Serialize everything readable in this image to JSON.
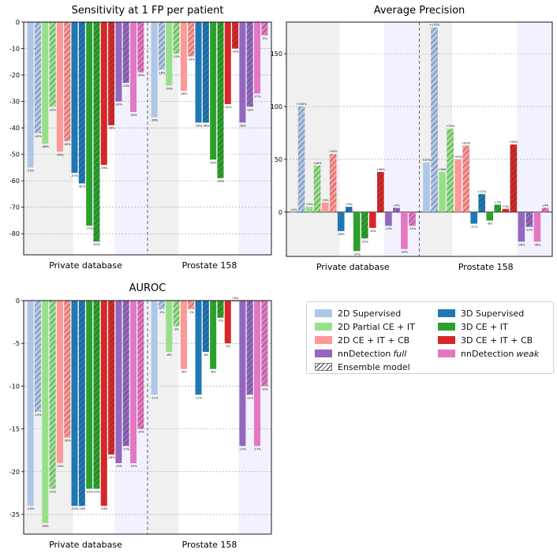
{
  "legend": {
    "items": [
      {
        "label": "2D Supervised",
        "color": "#aec7e8",
        "hatch": false
      },
      {
        "label": "2D Partial CE + IT",
        "color": "#98df8a",
        "hatch": false
      },
      {
        "label": "2D CE + IT + CB",
        "color": "#ff9896",
        "hatch": false
      },
      {
        "label": "nnDetection",
        "label_italic": "full",
        "color": "#9467bd",
        "hatch": false
      },
      {
        "label": "Ensemble model",
        "color": "#ffffff",
        "hatch": true
      },
      {
        "label": "3D Supervised",
        "color": "#1f77b4",
        "hatch": false
      },
      {
        "label": "3D CE + IT",
        "color": "#2ca02c",
        "hatch": false
      },
      {
        "label": "3D CE + IT + CB",
        "color": "#d62728",
        "hatch": false
      },
      {
        "label": "nnDetection",
        "label_italic": "weak",
        "color": "#e377c2",
        "hatch": false
      }
    ]
  },
  "chart_data": [
    {
      "type": "bar",
      "title": "Sensitivity at 1 FP per patient",
      "categories": [
        "Private database",
        "Prostate 158"
      ],
      "ylim": [
        -88,
        0
      ],
      "yticks": [
        0,
        -10,
        -20,
        -30,
        -40,
        -50,
        -60,
        -70,
        -80
      ],
      "series": [
        {
          "name": "2D Supervised",
          "color": "#aec7e8",
          "values": [
            -55,
            -36
          ],
          "labels": [
            "-55%",
            "-36%"
          ]
        },
        {
          "name": "2D Supervised (Ensemble)",
          "color": "#aec7e8",
          "hatch": true,
          "values": [
            -42,
            -18
          ],
          "labels": [
            "-42%",
            "-18%"
          ]
        },
        {
          "name": "2D Partial CE + IT",
          "color": "#98df8a",
          "values": [
            -46,
            -24
          ],
          "labels": [
            "-46%",
            "-24%"
          ]
        },
        {
          "name": "2D Partial CE + IT (Ensemble)",
          "color": "#98df8a",
          "hatch": true,
          "values": [
            -32,
            -12
          ],
          "labels": [
            "-32%",
            "-12%"
          ]
        },
        {
          "name": "2D CE + IT + CB",
          "color": "#ff9896",
          "values": [
            -49,
            -26
          ],
          "labels": [
            "-49%",
            "-26%"
          ]
        },
        {
          "name": "2D CE + IT + CB (Ensemble)",
          "color": "#ff9896",
          "hatch": true,
          "values": [
            -45,
            -13
          ],
          "labels": [
            "-45%",
            "-13%"
          ]
        },
        {
          "name": "3D Supervised",
          "color": "#1f77b4",
          "values": [
            -57,
            -38
          ],
          "labels": [
            "-57%",
            "-38%"
          ]
        },
        {
          "name": "3D Supervised (Ensemble)",
          "color": "#1f77b4",
          "hatch": true,
          "values": [
            -61,
            -38
          ],
          "labels": [
            "-61%",
            "-38%"
          ]
        },
        {
          "name": "3D CE + IT",
          "color": "#2ca02c",
          "values": [
            -77,
            -52
          ],
          "labels": [
            "-77%",
            "-52%"
          ]
        },
        {
          "name": "3D CE + IT (Ensemble)",
          "color": "#2ca02c",
          "hatch": true,
          "values": [
            -83,
            -59
          ],
          "labels": [
            "-83%",
            "-59%"
          ]
        },
        {
          "name": "3D CE + IT + CB",
          "color": "#d62728",
          "values": [
            -54,
            -31
          ],
          "labels": [
            "-54%",
            "-31%"
          ]
        },
        {
          "name": "3D CE + IT + CB (Ensemble)",
          "color": "#d62728",
          "hatch": true,
          "values": [
            -39,
            -10
          ],
          "labels": [
            "-39%",
            "-10%"
          ]
        },
        {
          "name": "nnDetection full",
          "color": "#9467bd",
          "values": [
            -30,
            -38
          ],
          "labels": [
            "-30%",
            "-38%"
          ]
        },
        {
          "name": "nnDetection full (Ensemble)",
          "color": "#9467bd",
          "hatch": true,
          "values": [
            -23,
            -32
          ],
          "labels": [
            "-23%",
            "-32%"
          ]
        },
        {
          "name": "nnDetection weak",
          "color": "#e377c2",
          "values": [
            -34,
            -27
          ],
          "labels": [
            "-34%",
            "-27%"
          ]
        },
        {
          "name": "nnDetection weak (Ensemble)",
          "color": "#e377c2",
          "hatch": true,
          "values": [
            -19,
            -5
          ],
          "labels": [
            "-19%",
            "-5%"
          ]
        }
      ]
    },
    {
      "type": "bar",
      "title": "Average Precision",
      "categories": [
        "Private database",
        "Prostate 158"
      ],
      "ylim": [
        -42,
        180
      ],
      "yticks": [
        150,
        100,
        50,
        0
      ],
      "series": [
        {
          "name": "2D Supervised",
          "color": "#aec7e8",
          "values": [
            0,
            47
          ],
          "labels": [
            "+0%",
            "+47%"
          ]
        },
        {
          "name": "2D Supervised (Ensemble)",
          "color": "#aec7e8",
          "hatch": true,
          "values": [
            100,
            175
          ],
          "labels": [
            "+100%",
            "+175%"
          ]
        },
        {
          "name": "2D Partial CE + IT",
          "color": "#98df8a",
          "values": [
            5,
            38
          ],
          "labels": [
            "+5%",
            "+38%"
          ]
        },
        {
          "name": "2D Partial CE + IT (Ensemble)",
          "color": "#98df8a",
          "hatch": true,
          "values": [
            44,
            79
          ],
          "labels": [
            "+44%",
            "+79%"
          ]
        },
        {
          "name": "2D CE + IT + CB",
          "color": "#ff9896",
          "values": [
            9,
            50
          ],
          "labels": [
            "+9%",
            "+50%"
          ]
        },
        {
          "name": "2D CE + IT + CB (Ensemble)",
          "color": "#ff9896",
          "hatch": true,
          "values": [
            55,
            63
          ],
          "labels": [
            "+55%",
            "+63%"
          ]
        },
        {
          "name": "3D Supervised",
          "color": "#1f77b4",
          "values": [
            -18,
            -11
          ],
          "labels": [
            "-18%",
            "-11%"
          ]
        },
        {
          "name": "3D Supervised (Ensemble)",
          "color": "#1f77b4",
          "hatch": true,
          "values": [
            5,
            17
          ],
          "labels": [
            "+5%",
            "+17%"
          ]
        },
        {
          "name": "3D CE + IT",
          "color": "#2ca02c",
          "values": [
            -37,
            -8
          ],
          "labels": [
            "-37%",
            "-8%"
          ]
        },
        {
          "name": "3D CE + IT (Ensemble)",
          "color": "#2ca02c",
          "hatch": true,
          "values": [
            -25,
            7
          ],
          "labels": [
            "-25%",
            "+7%"
          ]
        },
        {
          "name": "3D CE + IT + CB",
          "color": "#d62728",
          "values": [
            -15,
            3
          ],
          "labels": [
            "-15%",
            "+3%"
          ]
        },
        {
          "name": "3D CE + IT + CB (Ensemble)",
          "color": "#d62728",
          "hatch": true,
          "values": [
            38,
            64
          ],
          "labels": [
            "+38%",
            "+64%"
          ]
        },
        {
          "name": "nnDetection full",
          "color": "#9467bd",
          "values": [
            -13,
            -28
          ],
          "labels": [
            "-13%",
            "-28%"
          ]
        },
        {
          "name": "nnDetection full (Ensemble)",
          "color": "#9467bd",
          "hatch": true,
          "values": [
            4,
            -14
          ],
          "labels": [
            "+4%",
            "-14%"
          ]
        },
        {
          "name": "nnDetection weak",
          "color": "#e377c2",
          "values": [
            -35,
            -28
          ],
          "labels": [
            "-35%",
            "-28%"
          ]
        },
        {
          "name": "nnDetection weak (Ensemble)",
          "color": "#e377c2",
          "hatch": true,
          "values": [
            -13,
            4
          ],
          "labels": [
            "-13%",
            "+4%"
          ]
        }
      ]
    },
    {
      "type": "bar",
      "title": "AUROC",
      "categories": [
        "Private database",
        "Prostate 158"
      ],
      "ylim": [
        -27.3,
        0
      ],
      "yticks": [
        0,
        -5,
        -10,
        -15,
        -20,
        -25
      ],
      "series": [
        {
          "name": "2D Supervised",
          "color": "#aec7e8",
          "values": [
            -24,
            -11
          ],
          "labels": [
            "-24%",
            "-11%"
          ]
        },
        {
          "name": "2D Supervised (Ensemble)",
          "color": "#aec7e8",
          "hatch": true,
          "values": [
            -13,
            -1
          ],
          "labels": [
            "-13%",
            "-1%"
          ]
        },
        {
          "name": "2D Partial CE + IT",
          "color": "#98df8a",
          "values": [
            -26,
            -6
          ],
          "labels": [
            "-26%",
            "-6%"
          ]
        },
        {
          "name": "2D Partial CE + IT (Ensemble)",
          "color": "#98df8a",
          "hatch": true,
          "values": [
            -22,
            -3
          ],
          "labels": [
            "-22%",
            "-3%"
          ]
        },
        {
          "name": "2D CE + IT + CB",
          "color": "#ff9896",
          "values": [
            -19,
            -8
          ],
          "labels": [
            "-19%",
            "-8%"
          ]
        },
        {
          "name": "2D CE + IT + CB (Ensemble)",
          "color": "#ff9896",
          "hatch": true,
          "values": [
            -16,
            -1
          ],
          "labels": [
            "-16%",
            "-1%"
          ]
        },
        {
          "name": "3D Supervised",
          "color": "#1f77b4",
          "values": [
            -24,
            -11
          ],
          "labels": [
            "-24%",
            "-11%"
          ]
        },
        {
          "name": "3D Supervised (Ensemble)",
          "color": "#1f77b4",
          "hatch": true,
          "values": [
            -24,
            -6
          ],
          "labels": [
            "-24%",
            "-6%"
          ]
        },
        {
          "name": "3D CE + IT",
          "color": "#2ca02c",
          "values": [
            -22,
            -8
          ],
          "labels": [
            "-22%",
            "-8%"
          ]
        },
        {
          "name": "3D CE + IT (Ensemble)",
          "color": "#2ca02c",
          "hatch": true,
          "values": [
            -22,
            -2
          ],
          "labels": [
            "-22%",
            "-2%"
          ]
        },
        {
          "name": "3D CE + IT + CB",
          "color": "#d62728",
          "values": [
            -24,
            -5
          ],
          "labels": [
            "-24%",
            "-5%"
          ]
        },
        {
          "name": "3D CE + IT + CB (Ensemble)",
          "color": "#d62728",
          "hatch": true,
          "values": [
            -18,
            0
          ],
          "labels": [
            "-18%",
            "+0%"
          ]
        },
        {
          "name": "nnDetection full",
          "color": "#9467bd",
          "values": [
            -19,
            -17
          ],
          "labels": [
            "-19%",
            "-17%"
          ]
        },
        {
          "name": "nnDetection full (Ensemble)",
          "color": "#9467bd",
          "hatch": true,
          "values": [
            -17,
            -11
          ],
          "labels": [
            "-17%",
            "-11%"
          ]
        },
        {
          "name": "nnDetection weak",
          "color": "#e377c2",
          "values": [
            -19,
            -17
          ],
          "labels": [
            "-19%",
            "-17%"
          ]
        },
        {
          "name": "nnDetection weak (Ensemble)",
          "color": "#e377c2",
          "hatch": true,
          "values": [
            -15,
            -10
          ],
          "labels": [
            "-15%",
            "-10%"
          ]
        }
      ]
    }
  ]
}
